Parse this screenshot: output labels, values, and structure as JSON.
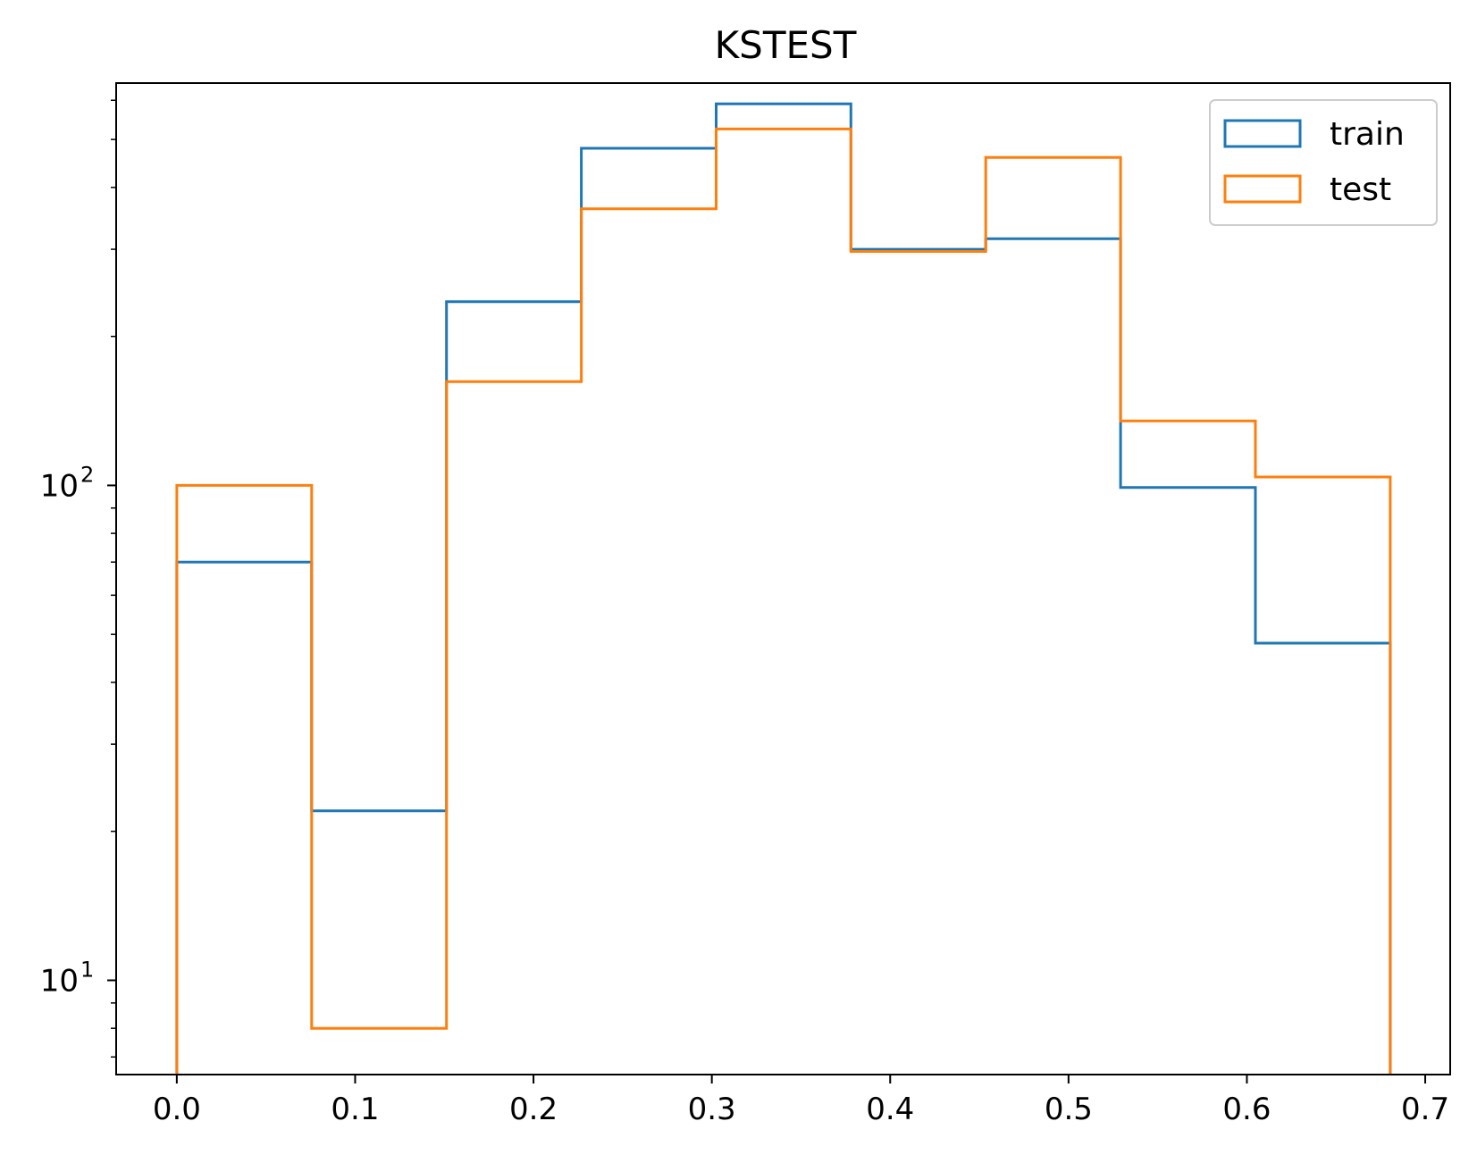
{
  "chart_data": {
    "type": "histogram",
    "title": "KSTEST",
    "xlabel": "",
    "ylabel": "",
    "y_scale": "log",
    "xlim": [
      -0.034,
      0.714
    ],
    "ylim": [
      6.45,
      650
    ],
    "x_ticks": [
      0.0,
      0.1,
      0.2,
      0.3,
      0.4,
      0.5,
      0.6,
      0.7
    ],
    "x_tick_labels": [
      "0.0",
      "0.1",
      "0.2",
      "0.3",
      "0.4",
      "0.5",
      "0.6",
      "0.7"
    ],
    "y_ticks": [
      {
        "value": 10,
        "base": "10",
        "exponent": "1"
      },
      {
        "value": 100,
        "base": "10",
        "exponent": "2"
      }
    ],
    "bin_edges": [
      0.0,
      0.0756,
      0.1512,
      0.2268,
      0.3024,
      0.378,
      0.4536,
      0.5292,
      0.6048,
      0.6804
    ],
    "series": [
      {
        "name": "train",
        "color": "#1f77b4",
        "histtype": "step",
        "values": [
          70,
          22,
          235,
          480,
          590,
          300,
          315,
          99,
          48
        ]
      },
      {
        "name": "test",
        "color": "#ff7f0e",
        "histtype": "step",
        "values": [
          100,
          8,
          162,
          362,
          525,
          297,
          460,
          135,
          104
        ]
      }
    ],
    "legend": {
      "position": "upper right",
      "entries": [
        "train",
        "test"
      ]
    },
    "grid": false
  }
}
